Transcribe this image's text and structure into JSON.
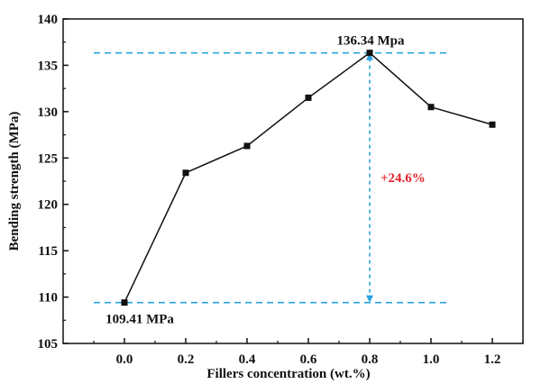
{
  "chart_data": {
    "type": "line",
    "xlabel": "Fillers concentration (wt.%)",
    "ylabel": "Bending strength (MPa)",
    "xlim": [
      -0.2,
      1.3
    ],
    "ylim": [
      105,
      140
    ],
    "xticks": [
      0.0,
      0.2,
      0.4,
      0.6,
      0.8,
      1.0,
      1.2
    ],
    "xtick_labels": [
      "0.0",
      "0.2",
      "0.4",
      "0.6",
      "0.8",
      "1.0",
      "1.2"
    ],
    "yticks": [
      105,
      110,
      115,
      120,
      125,
      130,
      135,
      140
    ],
    "ytick_labels": [
      "105",
      "110",
      "115",
      "120",
      "125",
      "130",
      "135",
      "140"
    ],
    "grid": false,
    "series": [
      {
        "x": [
          0.0,
          0.2,
          0.4,
          0.6,
          0.8,
          1.0,
          1.2
        ],
        "values": [
          109.41,
          123.4,
          126.3,
          131.5,
          136.34,
          130.5,
          128.6
        ],
        "color": "#111111",
        "marker": "square"
      }
    ],
    "annotations": {
      "max_label": "136.34 Mpa",
      "min_label": "109.41 MPa",
      "increase_label": "+24.6%",
      "max_value": 136.34,
      "min_value": 109.41,
      "max_x": 0.8,
      "guide_color": "#29a3e0",
      "increase_color": "#e3242b"
    }
  }
}
